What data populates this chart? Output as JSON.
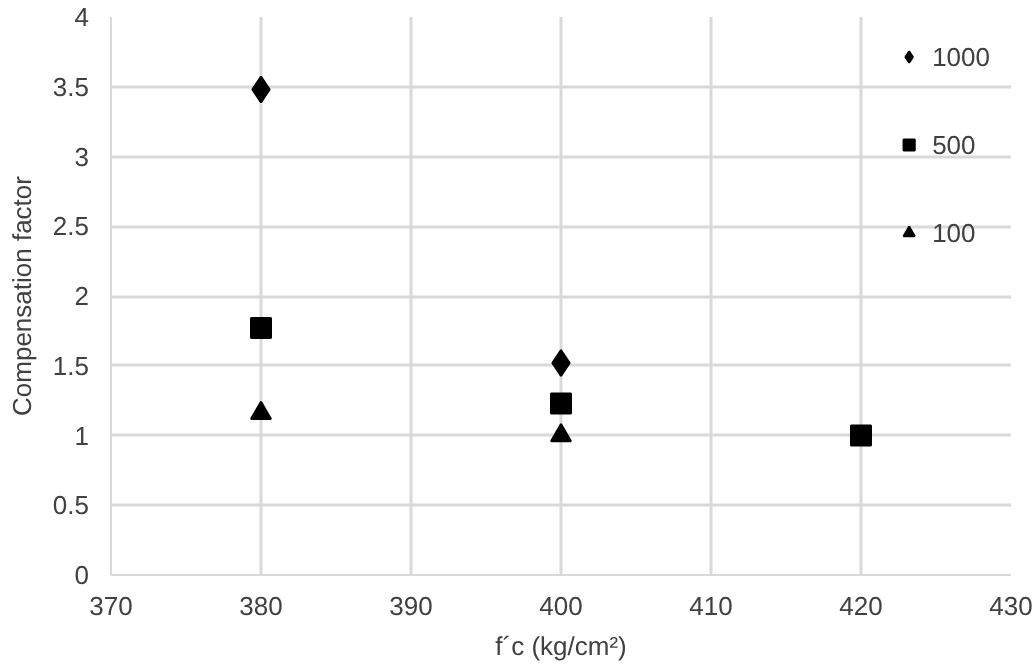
{
  "chart_data": {
    "type": "scatter",
    "xlabel": "f´c (kg/cm²)",
    "ylabel": "Compensation factor",
    "xlim": [
      370,
      430
    ],
    "xticks": [
      370,
      380,
      390,
      400,
      410,
      420,
      430
    ],
    "ylim": [
      0,
      4
    ],
    "yticks": [
      0,
      0.5,
      1,
      1.5,
      2,
      2.5,
      3,
      3.5,
      4
    ],
    "grid": true,
    "legend": "top right",
    "series": [
      {
        "name": "1000",
        "color": "#000000",
        "marker": "diamond",
        "x": [
          380,
          400
        ],
        "values": [
          3.48,
          1.52
        ]
      },
      {
        "name": "500",
        "color": "#000000",
        "marker": "square",
        "x": [
          380,
          400,
          420
        ],
        "values": [
          1.77,
          1.23,
          1.0
        ]
      },
      {
        "name": "100",
        "color": "#000000",
        "marker": "triangle",
        "x": [
          380,
          400
        ],
        "values": [
          1.16,
          1.0
        ]
      }
    ]
  }
}
